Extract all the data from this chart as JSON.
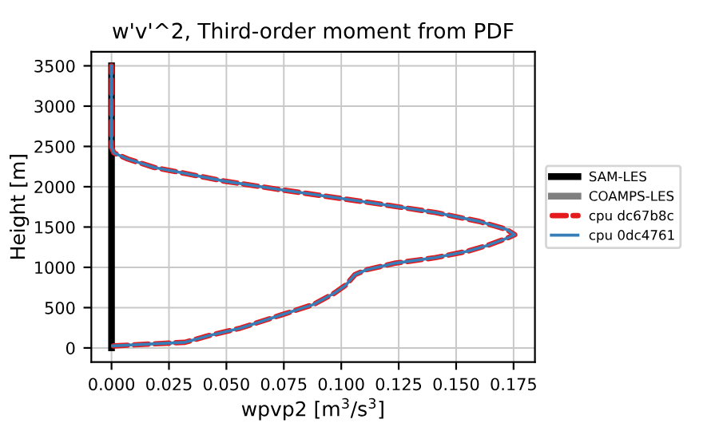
{
  "chart_data": {
    "type": "line",
    "title": "w'v'^2, Third-order moment from PDF",
    "xlabel": "wpvp2 [m$^{3}$/s$^{3}$]",
    "ylabel": "Height [m]",
    "xlim": [
      -0.0088,
      0.1843
    ],
    "ylim": [
      -175,
      3675
    ],
    "xticks": [
      {
        "value": 0,
        "label": "0.000"
      },
      {
        "value": 0.025,
        "label": "0.025"
      },
      {
        "value": 0.05,
        "label": "0.050"
      },
      {
        "value": 0.075,
        "label": "0.075"
      },
      {
        "value": 0.1,
        "label": "0.100"
      },
      {
        "value": 0.125,
        "label": "0.125"
      },
      {
        "value": 0.15,
        "label": "0.150"
      },
      {
        "value": 0.175,
        "label": "0.175"
      }
    ],
    "yticks": [
      0,
      500,
      1000,
      1500,
      2000,
      2500,
      3000,
      3500
    ],
    "grid": true,
    "legend": "right",
    "series": [
      {
        "name": "SAM-LES",
        "color": "#000000",
        "line_style": "solid",
        "x": [
          0,
          0
        ],
        "values": [
          0,
          3500
        ]
      },
      {
        "name": "COAMPS-LES",
        "color": "#808080",
        "line_style": "solid",
        "x": [
          null,
          null
        ],
        "values": [
          null,
          null
        ]
      },
      {
        "name": "cpu dc67b8c",
        "color": "#e41a1c",
        "line_style": "dashed",
        "x": [
          0.0005,
          0.032,
          0.042,
          0.056,
          0.074,
          0.088,
          0.097,
          0.102,
          0.106,
          0.111,
          0.123,
          0.141,
          0.155,
          0.164,
          0.172,
          0.1755,
          0.172,
          0.16,
          0.141,
          0.118,
          0.095,
          0.072,
          0.049,
          0.032,
          0.0185,
          0.007,
          0.001,
          0,
          0,
          0
        ],
        "values": [
          25,
          70,
          150,
          245,
          410,
          540,
          680,
          780,
          910,
          970,
          1050,
          1120,
          1200,
          1275,
          1360,
          1405,
          1470,
          1570,
          1680,
          1780,
          1875,
          1970,
          2070,
          2165,
          2240,
          2345,
          2420,
          2490,
          3070,
          3500
        ]
      },
      {
        "name": "cpu 0dc4761",
        "color": "#377eb8",
        "line_style": "solid",
        "x": [
          0.0005,
          0.032,
          0.042,
          0.056,
          0.074,
          0.088,
          0.097,
          0.102,
          0.106,
          0.111,
          0.123,
          0.141,
          0.155,
          0.164,
          0.172,
          0.1755,
          0.172,
          0.16,
          0.141,
          0.118,
          0.095,
          0.072,
          0.049,
          0.032,
          0.0185,
          0.007,
          0.001,
          0,
          0,
          0
        ],
        "values": [
          25,
          70,
          150,
          245,
          410,
          540,
          680,
          780,
          910,
          970,
          1050,
          1120,
          1200,
          1275,
          1360,
          1405,
          1470,
          1570,
          1680,
          1780,
          1875,
          1970,
          2070,
          2165,
          2240,
          2345,
          2420,
          2490,
          3070,
          3500
        ]
      }
    ]
  }
}
